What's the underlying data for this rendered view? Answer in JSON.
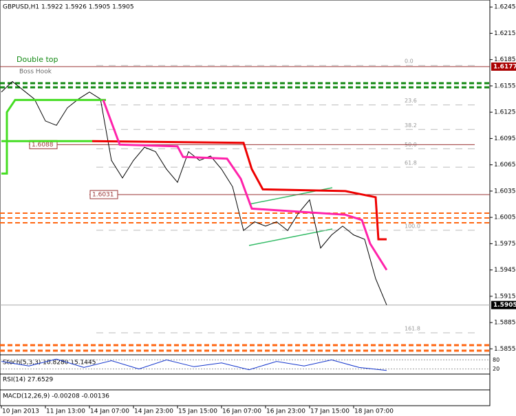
{
  "chart_data": {
    "type": "line",
    "title": "GBPUSD,H1  1.5922 1.5926 1.5905 1.5905",
    "xlim": [
      0,
      178
    ],
    "ylim": [
      1.5849,
      1.6253
    ],
    "yticks": [
      1.6245,
      1.6215,
      1.6185,
      1.6155,
      1.6125,
      1.6095,
      1.6065,
      1.6035,
      1.6005,
      1.5975,
      1.5945,
      1.5915,
      1.5885,
      1.5855
    ],
    "xticks": [
      {
        "value": 0,
        "label": "10 Jan 2013"
      },
      {
        "value": 16,
        "label": "11 Jan 13:00"
      },
      {
        "value": 32,
        "label": "14 Jan 07:00"
      },
      {
        "value": 48,
        "label": "14 Jan 23:00"
      },
      {
        "value": 64,
        "label": "15 Jan 15:00"
      },
      {
        "value": 80,
        "label": "16 Jan 07:00"
      },
      {
        "value": 96,
        "label": "16 Jan 23:00"
      },
      {
        "value": 112,
        "label": "17 Jan 15:00"
      },
      {
        "value": 128,
        "label": "18 Jan 07:00"
      }
    ],
    "series": [
      {
        "color": "#000000",
        "x": [
          0,
          4,
          8,
          12,
          16,
          20,
          24,
          28,
          32,
          36,
          40,
          44,
          48,
          52,
          56,
          60,
          64,
          68,
          72,
          76,
          80,
          84,
          88,
          92,
          96,
          100,
          104,
          108,
          112,
          116,
          120,
          124,
          128,
          132,
          136,
          140
        ],
        "values": [
          1.6148,
          1.616,
          1.615,
          1.614,
          1.6115,
          1.611,
          1.613,
          1.614,
          1.6148,
          1.614,
          1.607,
          1.605,
          1.607,
          1.6085,
          1.608,
          1.606,
          1.6045,
          1.608,
          1.607,
          1.6075,
          1.606,
          1.604,
          1.599,
          1.6,
          1.5995,
          1.6,
          1.599,
          1.601,
          1.6025,
          1.597,
          1.5985,
          1.5995,
          1.5985,
          1.598,
          1.5935,
          1.5905
        ]
      },
      {
        "color": "#44dd22",
        "x": [
          0,
          2,
          2,
          5,
          38
        ],
        "values": [
          1.6055,
          1.6055,
          1.6125,
          1.6139,
          1.6139
        ]
      },
      {
        "color": "#44dd22",
        "x": [
          0,
          33
        ],
        "values": [
          1.6092,
          1.6092
        ]
      },
      {
        "color": "#ee0000",
        "x": [
          33,
          88,
          91,
          95,
          125,
          136,
          137,
          140
        ],
        "values": [
          1.6092,
          1.609,
          1.606,
          1.6037,
          1.6035,
          1.6028,
          1.598,
          1.598
        ]
      },
      {
        "color": "#ff22aa",
        "x": [
          37,
          43,
          64,
          66,
          82,
          87,
          91,
          125,
          131,
          134,
          140
        ],
        "values": [
          1.6139,
          1.6088,
          1.6086,
          1.6074,
          1.6072,
          1.6049,
          1.6015,
          1.6008,
          1.6002,
          1.5975,
          1.5945
        ]
      }
    ],
    "levels": [
      {
        "value": 1.6177,
        "label": "1.6177"
      },
      {
        "value": 1.6088,
        "label": "1.6088"
      },
      {
        "value": 1.6031,
        "label": "1.6031"
      },
      {
        "value": 1.5905,
        "label": "1.5905"
      }
    ],
    "fibo": [
      {
        "value": 1.6183,
        "label": "0.0"
      },
      {
        "value": 1.6138,
        "label": "23.6"
      },
      {
        "value": 1.611,
        "label": "38.2"
      },
      {
        "value": 1.6088,
        "label": "50.0"
      },
      {
        "value": 1.6067,
        "label": "61.8"
      },
      {
        "value": 1.5995,
        "label": "100.0"
      },
      {
        "value": 1.5878,
        "label": "161.8"
      }
    ],
    "annotations": [
      "Double top",
      "Boss Hook"
    ],
    "stoch": {
      "label": "Stoch(5,3,3) 10.8280 15.1445",
      "ylim": [
        0,
        100
      ],
      "yticks": [
        80,
        20
      ],
      "x": [
        0,
        10,
        20,
        30,
        40,
        50,
        60,
        70,
        80,
        90,
        100,
        110,
        120,
        130,
        140
      ],
      "values": [
        70,
        40,
        85,
        30,
        75,
        20,
        80,
        35,
        60,
        15,
        70,
        40,
        80,
        30,
        10
      ]
    },
    "rsi": {
      "label": "RSI(14) 27.6529"
    },
    "macd": {
      "label": "MACD(12,26,9) -0.00208 -0.00136"
    }
  }
}
